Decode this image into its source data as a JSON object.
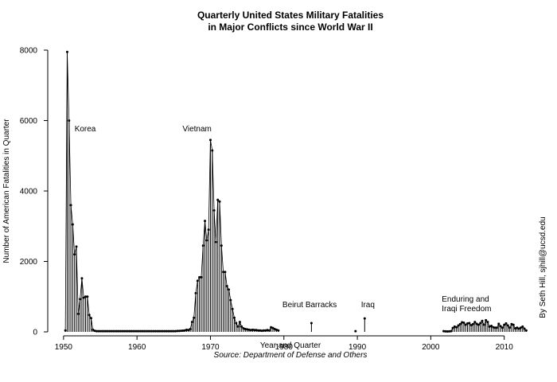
{
  "chart_data": {
    "type": "line",
    "title_line1": "Quarterly United States Military Fatalities",
    "title_line2": "in Major Conflicts since World War II",
    "xlabel": "Year and Quarter",
    "ylabel": "Number of American Fatalities in Quarter",
    "source": "Source: Department of Defense and Others",
    "credit": "By Seth Hill, sjhill@ucsd.edu",
    "xlim": [
      1948.5,
      2013.5
    ],
    "ylim": [
      0,
      8000
    ],
    "x_ticks": [
      1950,
      1960,
      1970,
      1980,
      1990,
      2000,
      2010
    ],
    "y_ticks": [
      0,
      2000,
      4000,
      6000,
      8000
    ],
    "grid": false,
    "annotations": [
      {
        "text": "Korea",
        "x": 1951.5,
        "y": 5700
      },
      {
        "text": "Vietnam",
        "x": 1966.2,
        "y": 5700
      },
      {
        "text": "Beirut Barracks",
        "x": 1979.8,
        "y": 700
      },
      {
        "text": "Iraq",
        "x": 1990.5,
        "y": 700
      },
      {
        "text": "Enduring and",
        "x": 2001.5,
        "y": 860
      },
      {
        "text": "Iraqi Freedom",
        "x": 2001.5,
        "y": 590
      }
    ],
    "series": [
      {
        "segments": [
          {
            "start": 1950.25,
            "step": 0.25,
            "values": [
              40,
              7950,
              6000,
              3600,
              3050,
              2200,
              2420,
              510,
              930,
              1520,
              970,
              1000,
              1000,
              480,
              390,
              60,
              30,
              20,
              20,
              20,
              20,
              20,
              20,
              20,
              20,
              20,
              20,
              20,
              20,
              20,
              20,
              20,
              20,
              20,
              20,
              20,
              20,
              20,
              20,
              20,
              20,
              20,
              20,
              20,
              20,
              20,
              20,
              20,
              20,
              20,
              20,
              20,
              20,
              20,
              20,
              20,
              20,
              20,
              20,
              20,
              20,
              25,
              25,
              30,
              35,
              40,
              60,
              50,
              80,
              280,
              400,
              1100,
              1450,
              1550,
              1550,
              2450,
              3150,
              2600,
              2900,
              5450,
              5150,
              3450,
              2550,
              3750,
              3700,
              2450,
              1700,
              1700,
              1300,
              1200,
              900,
              650,
              400,
              250,
              150,
              280,
              150,
              100,
              80,
              70,
              60,
              50,
              60,
              50,
              50,
              40,
              40,
              30,
              40,
              40,
              50,
              40,
              130,
              110,
              80,
              60,
              40
            ]
          },
          {
            "start": 1983.75,
            "step": 0.25,
            "values": [
              250
            ]
          },
          {
            "start": 1989.75,
            "step": 0.25,
            "values": [
              20
            ]
          },
          {
            "start": 1991.0,
            "step": 0.25,
            "values": [
              380
            ]
          },
          {
            "start": 2001.75,
            "step": 0.25,
            "values": [
              20,
              15,
              10,
              15,
              20,
              110,
              150,
              130,
              180,
              220,
              270,
              260,
              200,
              240,
              250,
              190,
              220,
              280,
              230,
              200,
              250,
              310,
              200,
              330,
              280,
              150,
              170,
              130,
              120,
              120,
              230,
              160,
              120,
              200,
              240,
              180,
              120,
              220,
              200,
              100,
              120,
              90,
              120,
              150,
              90,
              40
            ]
          }
        ]
      }
    ]
  }
}
